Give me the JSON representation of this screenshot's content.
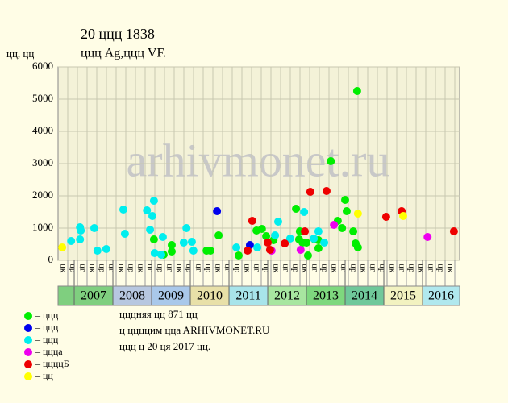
{
  "chart_data": {
    "type": "scatter",
    "title": "20 ццц 1838",
    "subtitle": "ццц Ag,ццц VF.",
    "y_label": "цц, цц",
    "watermark": "arhivmonet.ru",
    "xlim": [
      2006.583,
      2016.958
    ],
    "xticks": [
      2007,
      2008,
      2009,
      2010,
      2011,
      2012,
      2013,
      2014,
      2015,
      2016
    ],
    "band_colors": [
      "#7fcf7f",
      "#b7c7e0",
      "#a9c8ea",
      "#e8e0a8",
      "#a8e4ea",
      "#a8e6a0",
      "#7ed87e",
      "#6fc89a",
      "#f2f2c0",
      "#b0e8ee"
    ],
    "quarter_labels": [
      "цк",
      "цр",
      "цг",
      "цк",
      "цр",
      "цг",
      "цк",
      "цр",
      "цк",
      "цг",
      "цр",
      "цг",
      "цк",
      "цр",
      "цг",
      "цр",
      "цк",
      "цг",
      "цр",
      "цк",
      "цг",
      "цр",
      "цк",
      "цг",
      "цр",
      "цк",
      "цг",
      "цр",
      "цк",
      "цг",
      "цр",
      "цк",
      "цг",
      "цр",
      "цк",
      "цг",
      "цр",
      "цк",
      "цг",
      "цр",
      "цк"
    ],
    "ylim": [
      0,
      6000
    ],
    "yticks": [
      0,
      1000,
      2000,
      3000,
      4000,
      5000,
      6000
    ],
    "grid": true,
    "series": [
      {
        "name": "– ццц",
        "color": "#00ee00",
        "x": [
          2009.06,
          2009.52,
          2009.52,
          2009.31,
          2010.42,
          2010.52,
          2010.73,
          2011.25,
          2011.71,
          2011.85,
          2011.96,
          2012.15,
          2012.73,
          2012.81,
          2012.83,
          2012.9,
          2013.0,
          2013.04,
          2013.21,
          2013.31,
          2013.31,
          2013.63,
          2013.81,
          2013.92,
          2014.0,
          2014.04,
          2014.21,
          2014.27,
          2014.31,
          2014.33
        ],
        "values": [
          650,
          475,
          275,
          175,
          300,
          300,
          775,
          150,
          925,
          975,
          750,
          625,
          1600,
          650,
          900,
          550,
          550,
          150,
          650,
          375,
          625,
          3075,
          1225,
          1000,
          1875,
          1525,
          900,
          525,
          5250,
          400
        ]
      },
      {
        "name": "– ццц",
        "color": "#0000ee",
        "x": [
          2010.69,
          2011.54
        ],
        "values": [
          1525,
          475
        ]
      },
      {
        "name": "– ццц",
        "color": "#00eeee",
        "x": [
          2006.92,
          2007.15,
          2007.17,
          2007.15,
          2007.52,
          2007.6,
          2007.83,
          2008.27,
          2008.31,
          2008.88,
          2009.02,
          2009.06,
          2008.96,
          2009.08,
          2009.29,
          2009.25,
          2009.83,
          2009.9,
          2010.04,
          2010.08,
          2011.19,
          2011.73,
          2012.19,
          2012.27,
          2012.58,
          2012.94,
          2013.19,
          2013.31,
          2013.46
        ],
        "values": [
          600,
          1025,
          925,
          650,
          1000,
          300,
          350,
          1575,
          825,
          1550,
          1375,
          1850,
          950,
          225,
          725,
          175,
          550,
          1000,
          575,
          300,
          400,
          400,
          775,
          1200,
          675,
          1500,
          675,
          900,
          550
        ]
      },
      {
        "name": "– ццца",
        "color": "#ee00ee",
        "x": [
          2012.1,
          2012.85,
          2013.71,
          2016.13
        ],
        "values": [
          300,
          325,
          1100,
          725
        ]
      },
      {
        "name": "– ццццБ",
        "color": "#ee0000",
        "x": [
          2011.48,
          2011.6,
          2012.0,
          2012.06,
          2012.44,
          2012.96,
          2013.1,
          2013.52,
          2015.06,
          2015.46,
          2016.81
        ],
        "values": [
          300,
          1225,
          550,
          325,
          525,
          900,
          2125,
          2150,
          1350,
          1525,
          900
        ]
      },
      {
        "name": "– цц",
        "color": "#ffff00",
        "x": [
          2006.69,
          2014.33,
          2015.5
        ],
        "values": [
          400,
          1450,
          1375
        ]
      }
    ],
    "notes": [
      "цццняя цц 871 цц",
      "ц ццццим ццa ARHIVMONET.RU",
      "ццц ц 20 ця 2017 цц."
    ]
  }
}
